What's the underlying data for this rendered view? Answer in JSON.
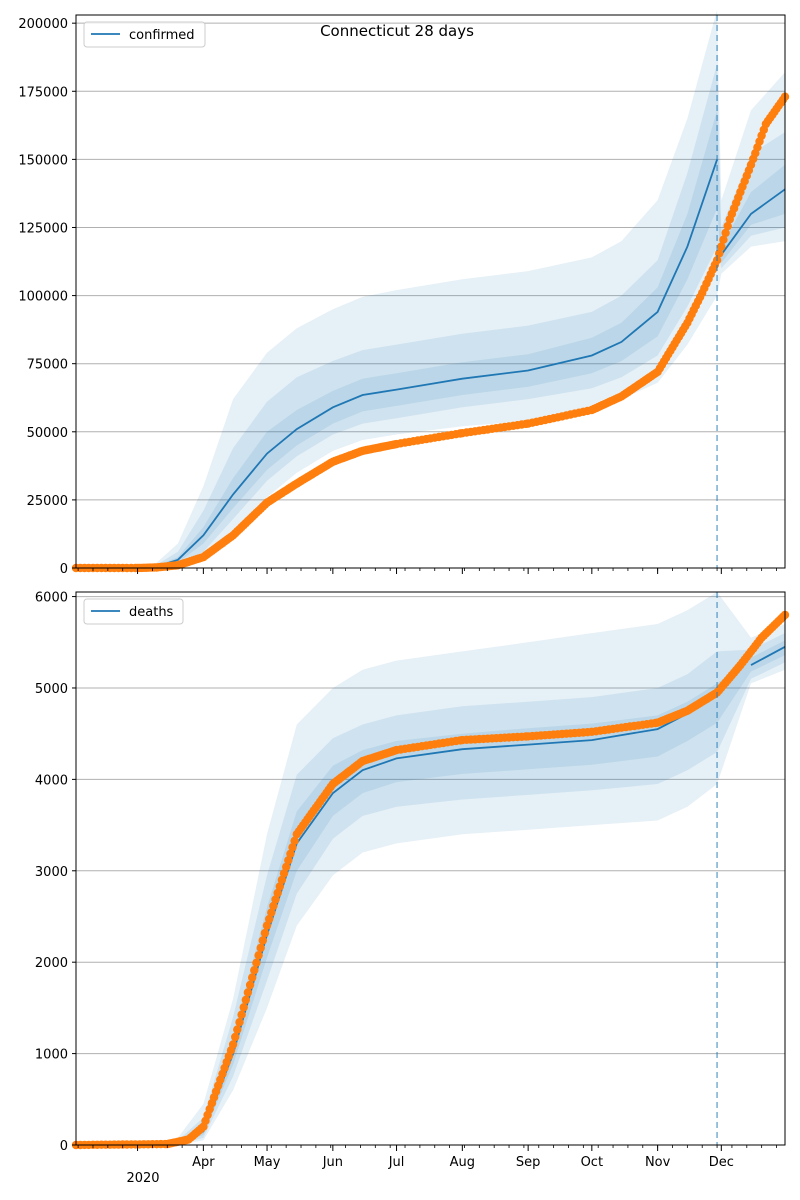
{
  "chart_data": [
    {
      "type": "line",
      "title": "Connecticut 28 days",
      "legend": {
        "label": "confirmed",
        "placement": "top-left"
      },
      "xlim": [
        "2020-02-01",
        "2020-12-31"
      ],
      "ylim": [
        0,
        203000
      ],
      "yticks": [
        0,
        25000,
        50000,
        75000,
        100000,
        125000,
        150000,
        175000,
        200000
      ],
      "ytick_labels": [
        "0",
        "25000",
        "50000",
        "75000",
        "100000",
        "125000",
        "150000",
        "175000",
        "200000"
      ],
      "grid": "horizontal",
      "forecast_start": "2020-11-29",
      "model_line": [
        {
          "date": "2020-02-28",
          "value": 0
        },
        {
          "date": "2020-03-10",
          "value": 500
        },
        {
          "date": "2020-03-20",
          "value": 3000
        },
        {
          "date": "2020-04-01",
          "value": 12000
        },
        {
          "date": "2020-04-15",
          "value": 27000
        },
        {
          "date": "2020-05-01",
          "value": 42000
        },
        {
          "date": "2020-05-15",
          "value": 51000
        },
        {
          "date": "2020-06-01",
          "value": 59000
        },
        {
          "date": "2020-06-15",
          "value": 63500
        },
        {
          "date": "2020-07-01",
          "value": 65500
        },
        {
          "date": "2020-08-01",
          "value": 69500
        },
        {
          "date": "2020-09-01",
          "value": 72500
        },
        {
          "date": "2020-10-01",
          "value": 78000
        },
        {
          "date": "2020-10-15",
          "value": 83000
        },
        {
          "date": "2020-11-01",
          "value": 94000
        },
        {
          "date": "2020-11-15",
          "value": 118000
        },
        {
          "date": "2020-11-29",
          "value": 150000
        },
        {
          "date": "2020-12-01",
          "value": 115000
        },
        {
          "date": "2020-12-15",
          "value": 130000
        },
        {
          "date": "2020-12-31",
          "value": 139000
        }
      ],
      "bands": [
        {
          "level": "outer",
          "lower": [
            0,
            0,
            0,
            3000,
            13000,
            26000,
            35000,
            43000,
            47000,
            49000,
            52000,
            54000,
            58000,
            62000,
            68000,
            82000,
            100000,
            108000,
            118000,
            120000
          ],
          "upper": [
            0,
            2000,
            9000,
            30000,
            62000,
            79000,
            88000,
            95000,
            99500,
            102000,
            106000,
            109000,
            114000,
            120000,
            135000,
            165000,
            205000,
            135000,
            168000,
            182000
          ]
        },
        {
          "level": "middle",
          "lower": [
            0,
            0,
            1000,
            6000,
            18000,
            32000,
            41000,
            49000,
            53000,
            55000,
            59000,
            62000,
            66000,
            70000,
            78000,
            96000,
            118000,
            110000,
            122000,
            125000
          ],
          "upper": [
            0,
            1200,
            6000,
            21000,
            44000,
            61000,
            70000,
            76000,
            80000,
            82000,
            86000,
            89000,
            94000,
            100000,
            113000,
            145000,
            185000,
            125000,
            152000,
            160000
          ]
        },
        {
          "level": "inner",
          "lower": [
            0,
            200,
            2000,
            9000,
            22000,
            36000,
            45000,
            53000,
            57500,
            59500,
            63500,
            66500,
            71500,
            76000,
            85000,
            106000,
            132000,
            112000,
            126000,
            130000
          ],
          "upper": [
            0,
            800,
            4000,
            15000,
            33000,
            50000,
            58000,
            65000,
            69500,
            71500,
            75500,
            78500,
            84500,
            90000,
            103000,
            130000,
            168000,
            118000,
            138000,
            148000
          ]
        }
      ],
      "observed_color": "#ff7f0e",
      "observed_points": [
        {
          "date": "2020-02-01",
          "value": 0
        },
        {
          "date": "2020-03-01",
          "value": 0
        },
        {
          "date": "2020-03-10",
          "value": 200
        },
        {
          "date": "2020-03-20",
          "value": 1000
        },
        {
          "date": "2020-04-01",
          "value": 4000
        },
        {
          "date": "2020-04-15",
          "value": 12000
        },
        {
          "date": "2020-05-01",
          "value": 24000
        },
        {
          "date": "2020-05-15",
          "value": 31000
        },
        {
          "date": "2020-06-01",
          "value": 39000
        },
        {
          "date": "2020-06-15",
          "value": 43000
        },
        {
          "date": "2020-07-01",
          "value": 45500
        },
        {
          "date": "2020-08-01",
          "value": 49500
        },
        {
          "date": "2020-09-01",
          "value": 53000
        },
        {
          "date": "2020-10-01",
          "value": 58000
        },
        {
          "date": "2020-10-15",
          "value": 63000
        },
        {
          "date": "2020-11-01",
          "value": 72000
        },
        {
          "date": "2020-11-15",
          "value": 90000
        },
        {
          "date": "2020-11-22",
          "value": 101000
        },
        {
          "date": "2020-11-29",
          "value": 113000
        },
        {
          "date": "2020-12-05",
          "value": 128000
        },
        {
          "date": "2020-12-15",
          "value": 148000
        },
        {
          "date": "2020-12-22",
          "value": 163000
        },
        {
          "date": "2020-12-31",
          "value": 173000
        }
      ]
    },
    {
      "type": "line",
      "legend": {
        "label": "deaths",
        "placement": "top-left"
      },
      "xlim": [
        "2020-02-01",
        "2020-12-31"
      ],
      "ylim": [
        0,
        6050
      ],
      "yticks": [
        0,
        1000,
        2000,
        3000,
        4000,
        5000,
        6000
      ],
      "ytick_labels": [
        "0",
        "1000",
        "2000",
        "3000",
        "4000",
        "5000",
        "6000"
      ],
      "xticks": [
        {
          "date": "2020-04-01",
          "label": "Apr"
        },
        {
          "date": "2020-05-01",
          "label": "May"
        },
        {
          "date": "2020-06-01",
          "label": "Jun"
        },
        {
          "date": "2020-07-01",
          "label": "Jul"
        },
        {
          "date": "2020-08-01",
          "label": "Aug"
        },
        {
          "date": "2020-09-01",
          "label": "Sep"
        },
        {
          "date": "2020-10-01",
          "label": "Oct"
        },
        {
          "date": "2020-11-01",
          "label": "Nov"
        },
        {
          "date": "2020-12-01",
          "label": "Dec"
        }
      ],
      "year_label": "2020",
      "grid": "horizontal",
      "forecast_start": "2020-11-29",
      "model_line": [
        {
          "date": "2020-03-20",
          "value": 20
        },
        {
          "date": "2020-04-01",
          "value": 150
        },
        {
          "date": "2020-04-15",
          "value": 1000
        },
        {
          "date": "2020-05-01",
          "value": 2300
        },
        {
          "date": "2020-05-15",
          "value": 3300
        },
        {
          "date": "2020-06-01",
          "value": 3850
        },
        {
          "date": "2020-06-15",
          "value": 4100
        },
        {
          "date": "2020-07-01",
          "value": 4230
        },
        {
          "date": "2020-08-01",
          "value": 4330
        },
        {
          "date": "2020-09-01",
          "value": 4380
        },
        {
          "date": "2020-10-01",
          "value": 4430
        },
        {
          "date": "2020-11-01",
          "value": 4550
        },
        {
          "date": "2020-11-15",
          "value": 4720
        },
        {
          "date": "2020-11-29",
          "value": 4930
        },
        {
          "date": "2020-12-15",
          "value": 5250
        },
        {
          "date": "2020-12-31",
          "value": 5450
        }
      ],
      "bands": [
        {
          "level": "outer",
          "lower": [
            0,
            50,
            600,
            1500,
            2400,
            2950,
            3200,
            3300,
            3400,
            3450,
            3500,
            3550,
            3700,
            3950,
            5050,
            5200
          ],
          "upper": [
            80,
            450,
            1600,
            3400,
            4600,
            5000,
            5200,
            5300,
            5400,
            5500,
            5600,
            5700,
            5850,
            6050,
            5550,
            5700
          ]
        },
        {
          "level": "middle",
          "lower": [
            0,
            80,
            750,
            1800,
            2750,
            3350,
            3600,
            3700,
            3780,
            3830,
            3880,
            3950,
            4100,
            4300,
            5100,
            5280
          ],
          "upper": [
            50,
            300,
            1400,
            2950,
            4050,
            4450,
            4600,
            4700,
            4800,
            4850,
            4900,
            5000,
            5150,
            5400,
            5420,
            5600
          ]
        },
        {
          "level": "inner",
          "lower": [
            10,
            110,
            880,
            2050,
            3000,
            3600,
            3850,
            3970,
            4060,
            4110,
            4160,
            4250,
            4420,
            4620,
            5180,
            5360
          ],
          "upper": [
            30,
            200,
            1200,
            2600,
            3650,
            4150,
            4320,
            4420,
            4500,
            4560,
            4610,
            4700,
            4850,
            5050,
            5330,
            5520
          ]
        }
      ],
      "observed_color": "#ff7f0e",
      "observed_points": [
        {
          "date": "2020-02-01",
          "value": 0
        },
        {
          "date": "2020-03-15",
          "value": 10
        },
        {
          "date": "2020-03-25",
          "value": 60
        },
        {
          "date": "2020-04-01",
          "value": 200
        },
        {
          "date": "2020-04-15",
          "value": 1100
        },
        {
          "date": "2020-05-01",
          "value": 2400
        },
        {
          "date": "2020-05-15",
          "value": 3400
        },
        {
          "date": "2020-06-01",
          "value": 3950
        },
        {
          "date": "2020-06-15",
          "value": 4200
        },
        {
          "date": "2020-07-01",
          "value": 4320
        },
        {
          "date": "2020-08-01",
          "value": 4430
        },
        {
          "date": "2020-09-01",
          "value": 4470
        },
        {
          "date": "2020-10-01",
          "value": 4520
        },
        {
          "date": "2020-11-01",
          "value": 4620
        },
        {
          "date": "2020-11-15",
          "value": 4750
        },
        {
          "date": "2020-11-29",
          "value": 4950
        },
        {
          "date": "2020-12-10",
          "value": 5250
        },
        {
          "date": "2020-12-20",
          "value": 5550
        },
        {
          "date": "2020-12-31",
          "value": 5800
        }
      ]
    }
  ]
}
